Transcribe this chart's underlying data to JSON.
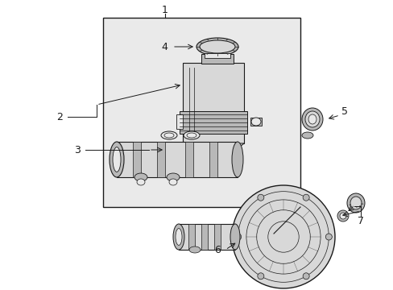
{
  "white": "#ffffff",
  "black": "#1a1a1a",
  "box_fill": "#eaeaea",
  "part_fill": "#d8d8d8",
  "part_dark": "#b8b8b8",
  "part_light": "#e8e8e8",
  "label_fs": 9
}
